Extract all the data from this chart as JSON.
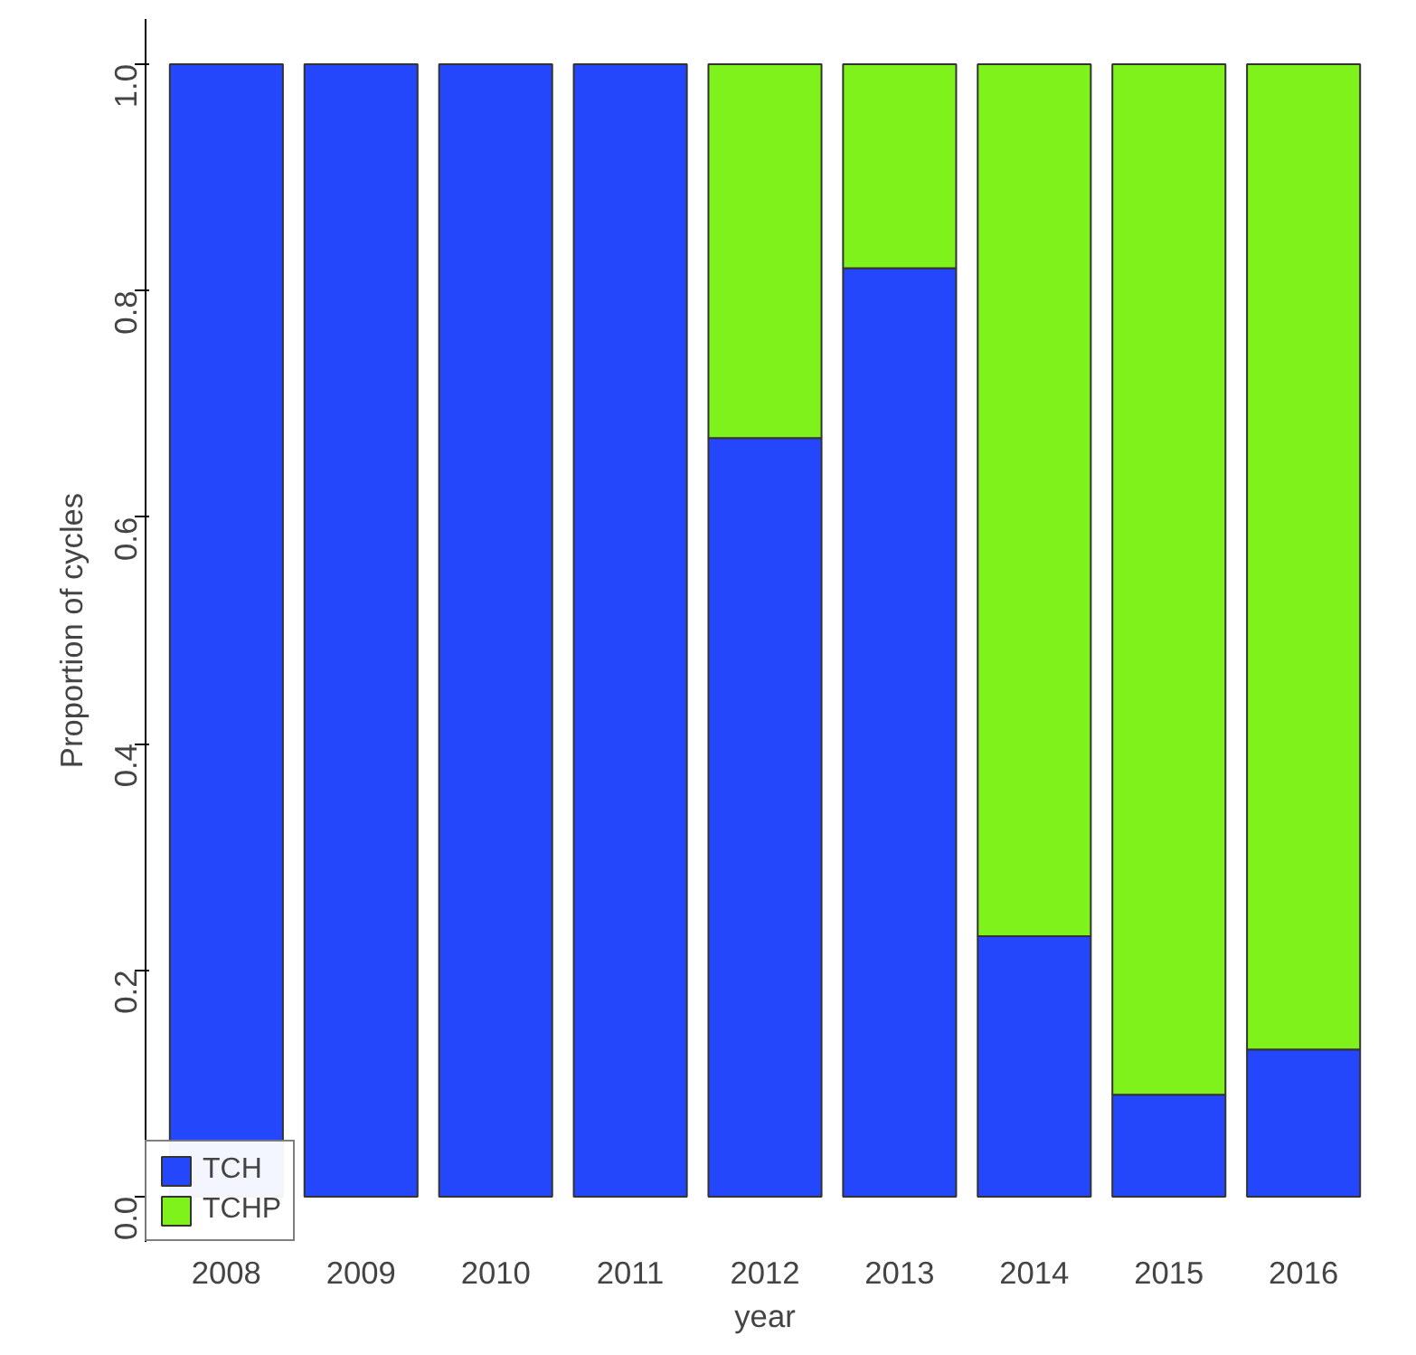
{
  "chart_data": {
    "type": "bar",
    "stacked": true,
    "xlabel": "year",
    "ylabel": "Proportion of cycles",
    "categories": [
      "2008",
      "2009",
      "2010",
      "2011",
      "2012",
      "2013",
      "2014",
      "2015",
      "2016"
    ],
    "series": [
      {
        "name": "TCH",
        "color": "#2447fb",
        "values": [
          1,
          1,
          1,
          1,
          0.67,
          0.82,
          0.23,
          0.09,
          0.13
        ]
      },
      {
        "name": "TCHP",
        "color": "#80f21b",
        "values": [
          null,
          null,
          null,
          null,
          0.33,
          0.18,
          0.77,
          0.91,
          0.87
        ]
      }
    ],
    "ylim": [
      -0.04,
      1.04
    ],
    "yticks": [
      {
        "value": 0,
        "label": "0.0"
      },
      0.2,
      0.4,
      0.6,
      0.8,
      {
        "value": 1,
        "label": "1.0"
      }
    ],
    "grid": false,
    "legend": "bottom left"
  }
}
